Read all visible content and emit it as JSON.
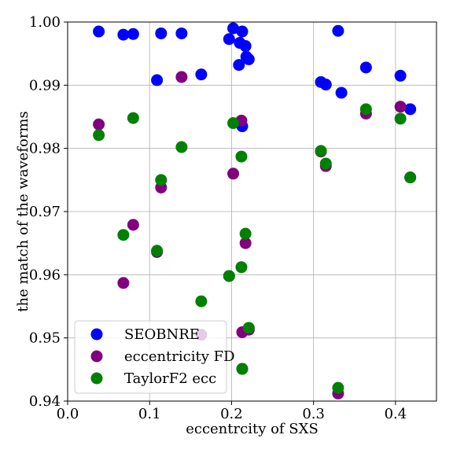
{
  "chart_data": {
    "type": "scatter",
    "title": "",
    "xlabel": "eccentrcity of SXS",
    "ylabel": "the match of the waveforms",
    "xlim": [
      0.0,
      0.45
    ],
    "ylim": [
      0.94,
      1.0
    ],
    "x_ticks": [
      0.0,
      0.1,
      0.2,
      0.3,
      0.4
    ],
    "x_tick_labels": [
      "0.0",
      "0.1",
      "0.2",
      "0.3",
      "0.4"
    ],
    "y_ticks": [
      0.94,
      0.95,
      0.96,
      0.97,
      0.98,
      0.99,
      1.0
    ],
    "y_tick_labels": [
      "0.94",
      "0.95",
      "0.96",
      "0.97",
      "0.98",
      "0.99",
      "1.00"
    ],
    "grid": true,
    "legend_position": "lower-left",
    "series": [
      {
        "name": "SEOBNRE",
        "color": "#0000ff",
        "points": [
          [
            0.038,
            0.9985
          ],
          [
            0.068,
            0.998
          ],
          [
            0.08,
            0.9981
          ],
          [
            0.114,
            0.9982
          ],
          [
            0.139,
            0.9982
          ],
          [
            0.109,
            0.9908
          ],
          [
            0.163,
            0.9917
          ],
          [
            0.197,
            0.9973
          ],
          [
            0.202,
            0.999
          ],
          [
            0.21,
            0.9967
          ],
          [
            0.213,
            0.9985
          ],
          [
            0.217,
            0.9962
          ],
          [
            0.218,
            0.9945
          ],
          [
            0.221,
            0.9941
          ],
          [
            0.209,
            0.9932
          ],
          [
            0.213,
            0.9835
          ],
          [
            0.309,
            0.9905
          ],
          [
            0.315,
            0.9901
          ],
          [
            0.33,
            0.9986
          ],
          [
            0.334,
            0.9888
          ],
          [
            0.364,
            0.9928
          ],
          [
            0.406,
            0.9915
          ],
          [
            0.418,
            0.9862
          ]
        ]
      },
      {
        "name": "eccentricity FD",
        "color": "#800080",
        "points": [
          [
            0.038,
            0.9838
          ],
          [
            0.068,
            0.9587
          ],
          [
            0.08,
            0.9679
          ],
          [
            0.114,
            0.9738
          ],
          [
            0.139,
            0.9913
          ],
          [
            0.109,
            0.9636
          ],
          [
            0.163,
            0.9505
          ],
          [
            0.197,
            0.9598
          ],
          [
            0.202,
            0.976
          ],
          [
            0.212,
            0.9844
          ],
          [
            0.213,
            0.9509
          ],
          [
            0.217,
            0.965
          ],
          [
            0.221,
            0.9513
          ],
          [
            0.213,
            0.9451
          ],
          [
            0.309,
            0.9795
          ],
          [
            0.315,
            0.9772
          ],
          [
            0.33,
            0.9412
          ],
          [
            0.364,
            0.9855
          ],
          [
            0.406,
            0.9866
          ],
          [
            0.418,
            0.9754
          ]
        ]
      },
      {
        "name": "TaylorF2 ecc",
        "color": "#008000",
        "points": [
          [
            0.038,
            0.9821
          ],
          [
            0.068,
            0.9663
          ],
          [
            0.08,
            0.9848
          ],
          [
            0.114,
            0.975
          ],
          [
            0.139,
            0.9802
          ],
          [
            0.109,
            0.9638
          ],
          [
            0.163,
            0.9558
          ],
          [
            0.197,
            0.9598
          ],
          [
            0.202,
            0.984
          ],
          [
            0.212,
            0.9787
          ],
          [
            0.212,
            0.9612
          ],
          [
            0.213,
            0.9451
          ],
          [
            0.217,
            0.9665
          ],
          [
            0.221,
            0.9516
          ],
          [
            0.309,
            0.9796
          ],
          [
            0.315,
            0.9776
          ],
          [
            0.33,
            0.9421
          ],
          [
            0.364,
            0.9862
          ],
          [
            0.406,
            0.9847
          ],
          [
            0.418,
            0.9754
          ]
        ]
      }
    ]
  }
}
